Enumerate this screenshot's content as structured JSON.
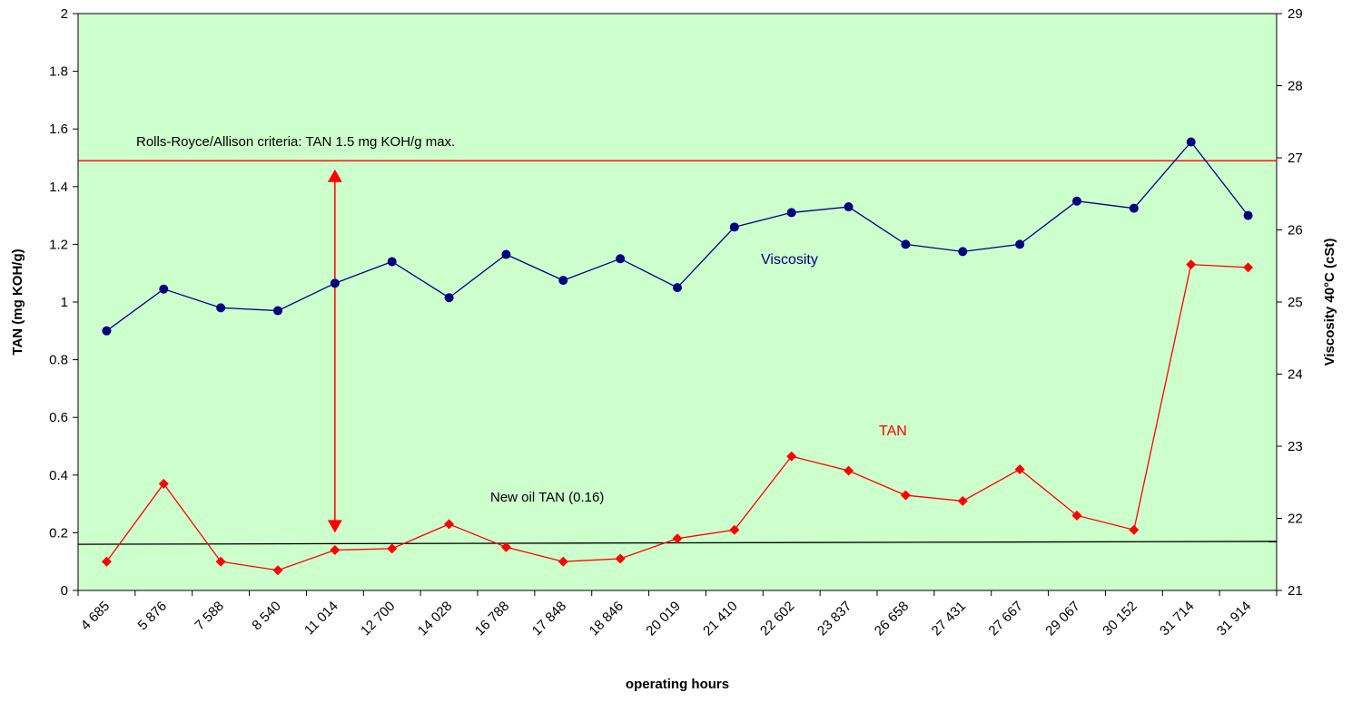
{
  "chart_data": {
    "type": "line",
    "xlabel": "operating hours",
    "ylabel_left": "TAN (mg KOH/g)",
    "ylabel_right": "Viscosity 40°C (cSt)",
    "categories": [
      "4 685",
      "5 876",
      "7 588",
      "8 540",
      "11 014",
      "12 700",
      "14 028",
      "16 788",
      "17 848",
      "18 846",
      "20 019",
      "21 410",
      "22 602",
      "23 837",
      "26 658",
      "27 431",
      "27 667",
      "29 067",
      "30 152",
      "31 714",
      "31 914"
    ],
    "ylim_left": [
      0,
      2
    ],
    "ylim_right": [
      21,
      29
    ],
    "yticks_left": [
      "0",
      "0.2",
      "0.4",
      "0.6",
      "0.8",
      "1",
      "1.2",
      "1.4",
      "1.6",
      "1.8",
      "2"
    ],
    "yticks_right": [
      "21",
      "22",
      "23",
      "24",
      "25",
      "26",
      "27",
      "28",
      "29"
    ],
    "series": [
      {
        "name": "Viscosity",
        "axis": "right",
        "color": "#000080",
        "marker": "circle",
        "values": [
          24.6,
          25.18,
          24.92,
          24.88,
          25.26,
          25.56,
          25.06,
          25.66,
          25.3,
          25.6,
          25.2,
          26.04,
          26.24,
          26.32,
          25.8,
          25.7,
          25.8,
          26.4,
          26.3,
          27.22,
          26.2
        ]
      },
      {
        "name": "TAN",
        "axis": "left",
        "color": "#ff0000",
        "marker": "diamond",
        "values": [
          0.1,
          0.37,
          0.1,
          0.07,
          0.14,
          0.145,
          0.23,
          0.15,
          0.1,
          0.11,
          0.18,
          0.21,
          0.465,
          0.415,
          0.33,
          0.31,
          0.42,
          0.26,
          0.21,
          1.13,
          1.12
        ]
      }
    ],
    "reference_lines": [
      {
        "label": "Rolls-Royce/Allison criteria: TAN 1.5 mg KOH/g max.",
        "value": 1.49,
        "color": "#ff0000"
      },
      {
        "label": "New oil TAN (0.16)",
        "value_start": 0.16,
        "value_end": 0.17,
        "color": "#000000"
      }
    ],
    "arrow": {
      "category_index": 4,
      "from": 0.2,
      "to": 1.46,
      "color": "#ff0000"
    },
    "plot_background": "#ccffcc",
    "grid": false,
    "legend": "none"
  }
}
